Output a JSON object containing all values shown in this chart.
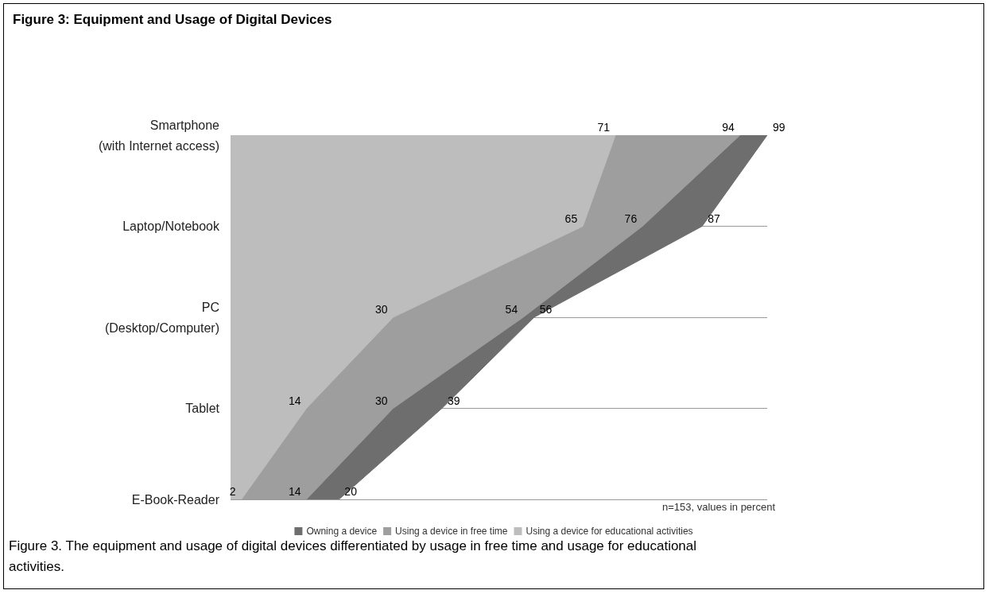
{
  "chart_data": {
    "type": "area",
    "orientation": "horizontal",
    "title": "Figure 3: Equipment and Usage of Digital Devices",
    "categories": [
      "Smartphone\n(with Internet access)",
      "Laptop/Notebook",
      "PC\n(Desktop/Computer)",
      "Tablet",
      "E-Book-Reader"
    ],
    "series": [
      {
        "name": "Owning a device",
        "color": "#6e6e6e",
        "values": [
          99,
          87,
          56,
          39,
          20
        ]
      },
      {
        "name": "Using a device in free time",
        "color": "#9e9e9e",
        "values": [
          94,
          76,
          54,
          30,
          14
        ]
      },
      {
        "name": "Using a device for educational activities",
        "color": "#bdbdbd",
        "values": [
          71,
          65,
          30,
          14,
          2
        ]
      }
    ],
    "data_labels": true,
    "grid": "y",
    "legend": "bottom",
    "annotations": [
      "n=153, values in percent",
      "Figure 3. The equipment and usage of digital devices differentiated by usage in free time and usage for educational activities."
    ]
  }
}
